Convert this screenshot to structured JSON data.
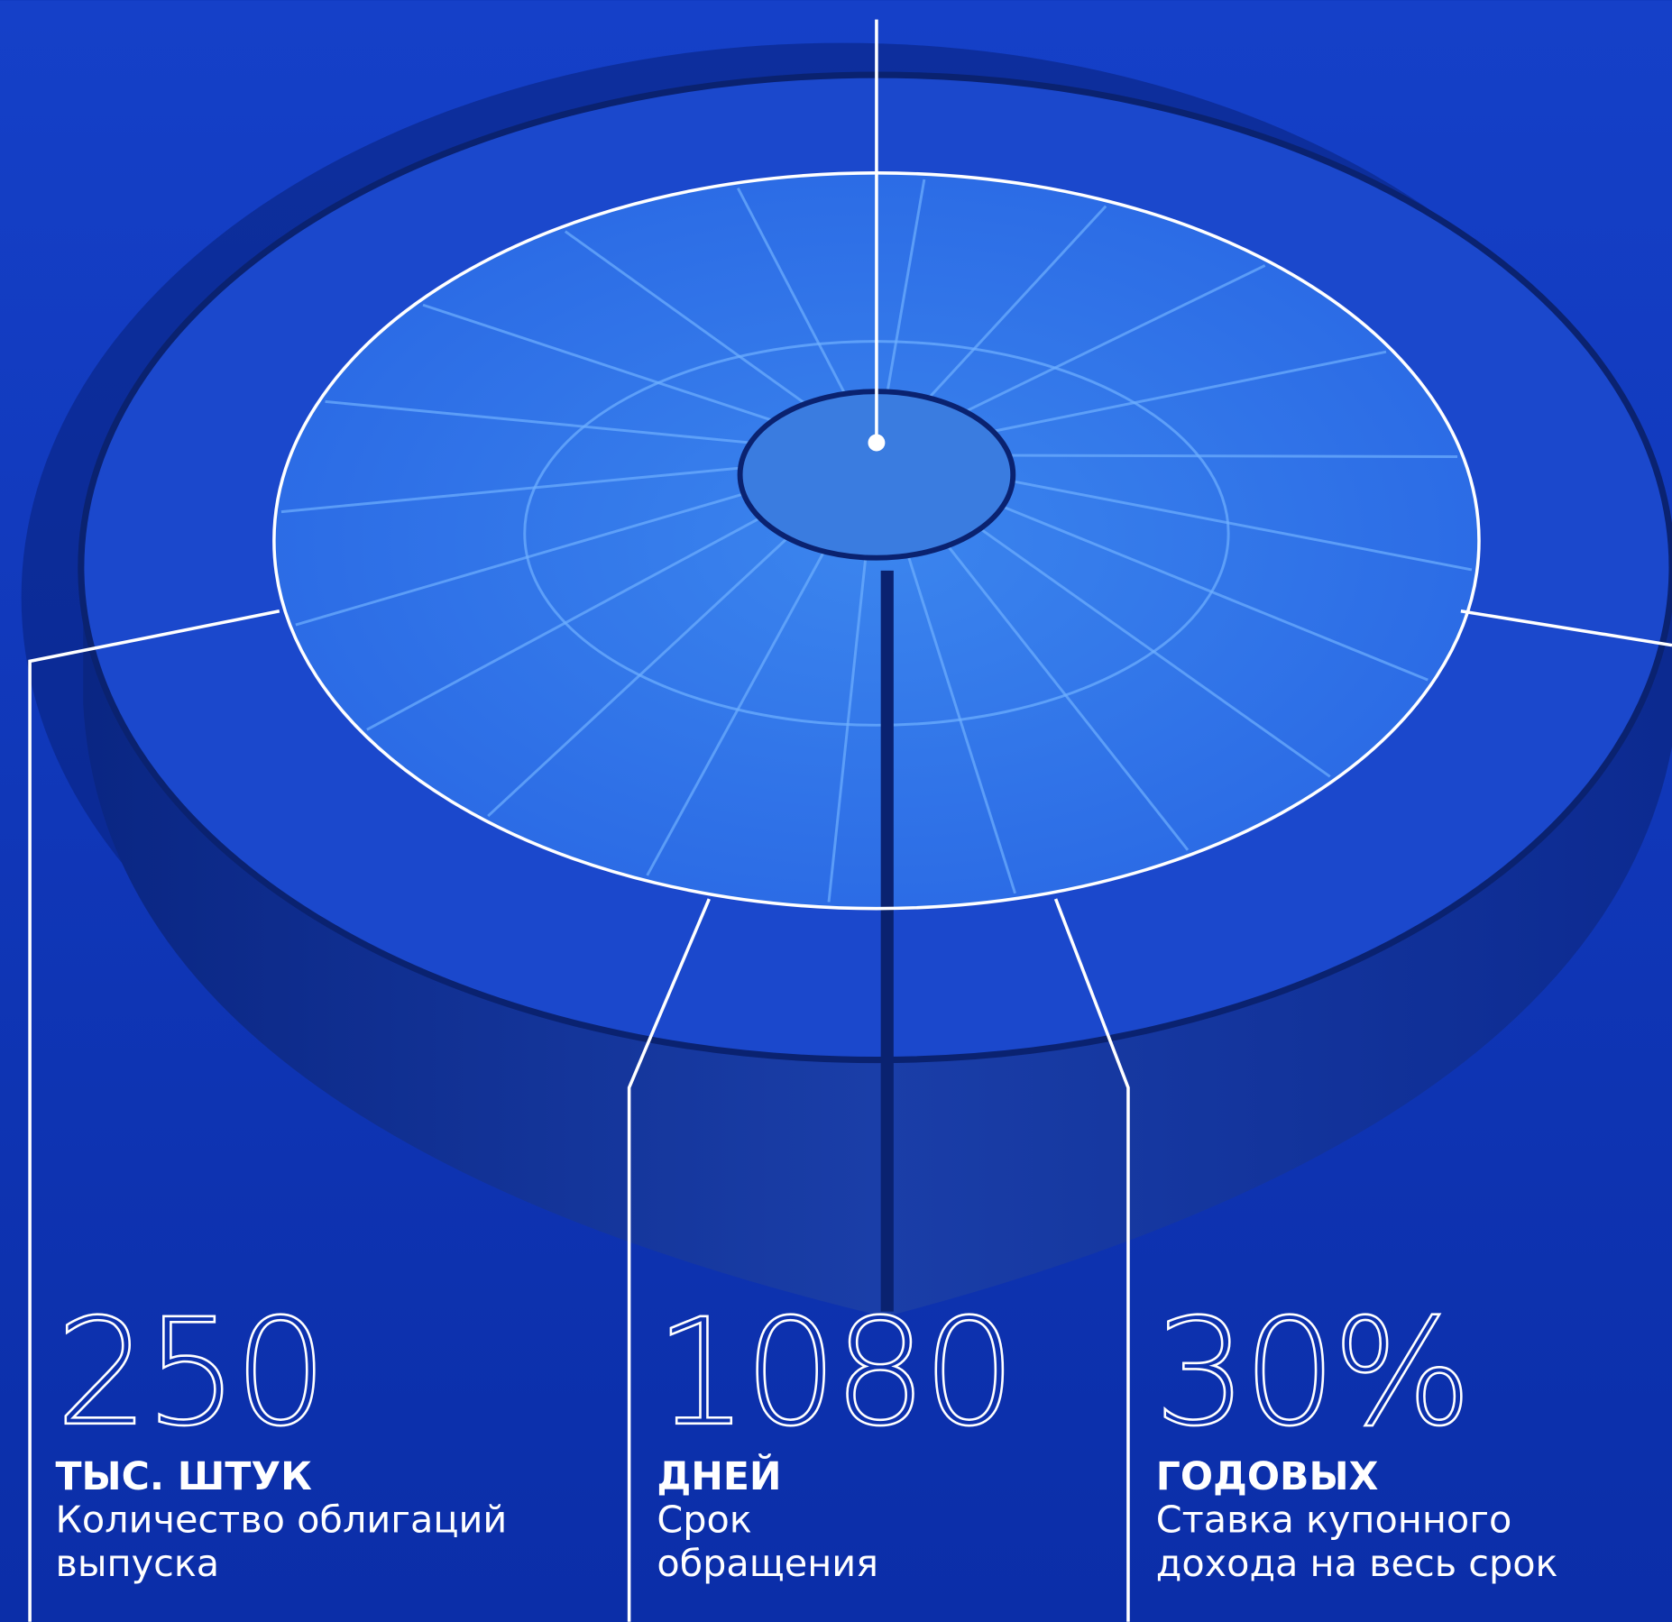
{
  "stats": [
    {
      "value": "250",
      "unit": "ТЫС. ШТУК",
      "description": [
        "Количество облигаций",
        "выпуска"
      ]
    },
    {
      "value": "1080",
      "unit": "ДНЕЙ",
      "description": [
        "Срок",
        "обращения"
      ]
    },
    {
      "value": "30%",
      "unit": "ГОДОВЫХ",
      "description": [
        "Ставка купонного",
        "дохода на весь срок"
      ]
    }
  ]
}
